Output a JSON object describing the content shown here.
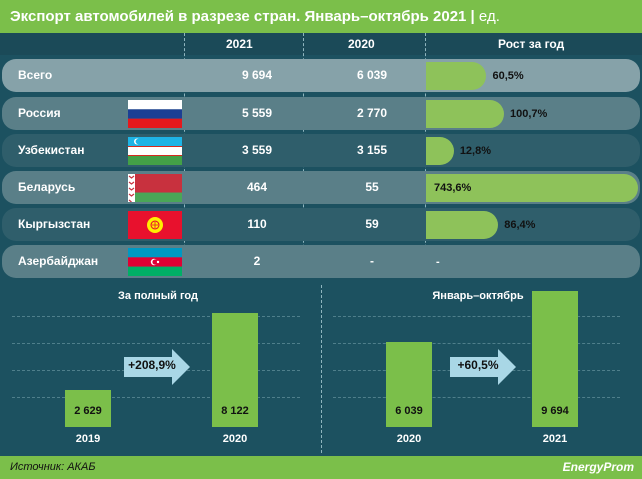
{
  "title": "Экспорт автомобилей в разрезе стран. Январь–октябрь 2021 |",
  "title_unit": " ед.",
  "headers": {
    "col1": "2021",
    "col2": "2020",
    "col3": "Рост за год"
  },
  "colors": {
    "green": "#7bbf4a",
    "bg": "#1c5160",
    "bar": "#8ec25a"
  },
  "chart_data": [
    {
      "type": "table",
      "rows": [
        {
          "name": "Всего",
          "flag": "",
          "v2021": "9 694",
          "v2020": "6 039",
          "growth": "60,5%",
          "growth_value": 60.5
        },
        {
          "name": "Россия",
          "flag": "russia-flag-icon",
          "v2021": "5 559",
          "v2020": "2 770",
          "growth": "100,7%",
          "growth_value": 100.7
        },
        {
          "name": "Узбекистан",
          "flag": "uzbekistan-flag-icon",
          "v2021": "3 559",
          "v2020": "3 155",
          "growth": "12,8%",
          "growth_value": 12.8
        },
        {
          "name": "Беларусь",
          "flag": "belarus-flag-icon",
          "v2021": "464",
          "v2020": "55",
          "growth": "743,6%",
          "growth_value": 743.6
        },
        {
          "name": "Кыргызстан",
          "flag": "kyrgyzstan-flag-icon",
          "v2021": "110",
          "v2020": "59",
          "growth": "86,4%",
          "growth_value": 86.4
        },
        {
          "name": "Азербайджан",
          "flag": "azerbaijan-flag-icon",
          "v2021": "2",
          "v2020": "-",
          "growth": "-",
          "growth_value": null
        }
      ]
    },
    {
      "type": "bar",
      "title": "За полный год",
      "categories": [
        "2019",
        "2020"
      ],
      "values": [
        2629,
        8122
      ],
      "labels": [
        "2 629",
        "8 122"
      ],
      "growth_label": "+208,9%"
    },
    {
      "type": "bar",
      "title": "Январь–октябрь",
      "categories": [
        "2020",
        "2021"
      ],
      "values": [
        6039,
        9694
      ],
      "labels": [
        "6 039",
        "9 694"
      ],
      "growth_label": "+60,5%"
    }
  ],
  "footer": {
    "source": "Источник: АКАБ",
    "logo": "EnergyProm"
  }
}
